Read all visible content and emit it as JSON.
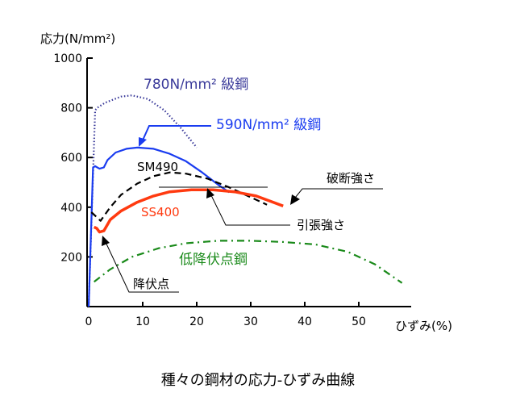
{
  "chart_data": {
    "type": "line",
    "title": "種々の鋼材の応力-ひずみ曲線",
    "ylabel": "応力(N/mm²)",
    "xlabel": "ひずみ(%)",
    "xlim": [
      0,
      58
    ],
    "ylim": [
      0,
      1000
    ],
    "xticks": [
      "0",
      "10",
      "20",
      "30",
      "40",
      "50"
    ],
    "yticks": [
      "200",
      "400",
      "600",
      "800",
      "1000"
    ],
    "grid": false,
    "series": [
      {
        "name": "780N/mm²  級鋼",
        "color": "#3a3a9a",
        "style": "dotted",
        "x": [
          0,
          1.2,
          1.6,
          3,
          6,
          8,
          11,
          14,
          17,
          20
        ],
        "y": [
          0,
          790,
          800,
          820,
          845,
          850,
          835,
          790,
          720,
          640
        ]
      },
      {
        "name": "590N/mm²  級鋼",
        "color": "#1a3cf0",
        "style": "solid",
        "x": [
          0,
          0.8,
          1.2,
          2,
          2.8,
          3.5,
          5,
          7,
          9,
          12,
          15,
          18,
          21,
          24,
          26
        ],
        "y": [
          0,
          560,
          565,
          555,
          560,
          590,
          620,
          635,
          640,
          635,
          615,
          585,
          540,
          490,
          460
        ]
      },
      {
        "name": "SM490",
        "color": "#000000",
        "style": "dashed",
        "x": [
          0.5,
          1.5,
          2.2,
          4,
          6,
          9,
          12,
          15,
          18,
          22,
          26,
          30,
          33
        ],
        "y": [
          380,
          360,
          345,
          400,
          450,
          495,
          525,
          540,
          535,
          515,
          480,
          440,
          410
        ]
      },
      {
        "name": "SS400",
        "color": "#ff3a10",
        "style": "solid",
        "x": [
          1,
          1.5,
          2,
          2.8,
          4,
          6,
          9,
          12,
          15,
          19,
          23,
          27,
          31,
          36
        ],
        "y": [
          320,
          315,
          300,
          305,
          350,
          385,
          420,
          445,
          462,
          470,
          470,
          462,
          445,
          405
        ]
      },
      {
        "name": "低降伏点鋼",
        "color": "#1a8a1a",
        "style": "dashdot",
        "x": [
          1,
          4,
          8,
          13,
          18,
          24,
          30,
          36,
          42,
          48,
          53,
          58
        ],
        "y": [
          100,
          150,
          200,
          235,
          255,
          265,
          265,
          260,
          250,
          220,
          170,
          95
        ]
      }
    ],
    "annotations": [
      "破断強さ",
      "引張強さ",
      "降伏点"
    ]
  }
}
